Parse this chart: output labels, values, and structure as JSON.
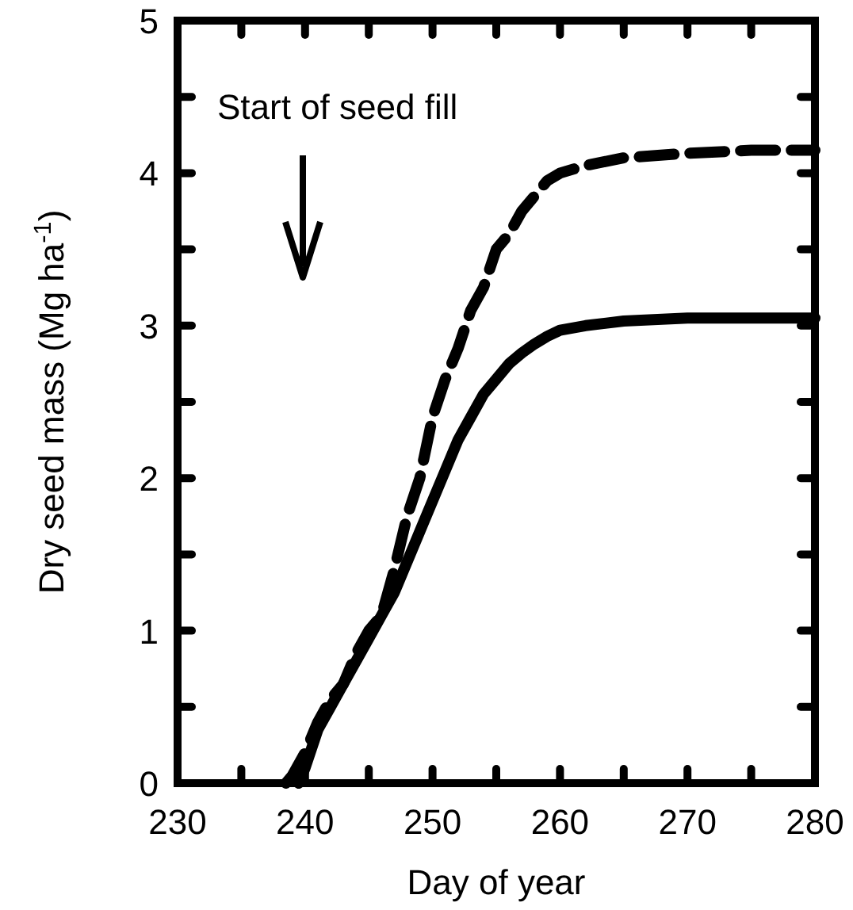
{
  "chart_data": {
    "type": "line",
    "xlabel": "Day of year",
    "ylabel": "Dry seed mass (Mg ha$^{-1}$)",
    "xlim": [
      230,
      280
    ],
    "ylim": [
      0,
      5
    ],
    "xticks": [
      230,
      {
        "value": 235,
        "label": null
      },
      240,
      {
        "value": 245,
        "label": null
      },
      250,
      {
        "value": 255,
        "label": null
      },
      260,
      {
        "value": 265,
        "label": null
      },
      270,
      {
        "value": 275,
        "label": null
      },
      280
    ],
    "yticks": [
      0,
      {
        "value": 0.5,
        "label": null
      },
      1,
      {
        "value": 1.5,
        "label": null
      },
      2,
      {
        "value": 2.5,
        "label": null
      },
      3,
      {
        "value": 3.5,
        "label": null
      },
      4,
      {
        "value": 4.5,
        "label": null
      },
      5
    ],
    "grid": false,
    "annotations": [
      "Start of seed fill"
    ],
    "series": [
      {
        "color": "#000000",
        "line_style": "dashed",
        "x": [
          238.5,
          239,
          240,
          241,
          242,
          243,
          244,
          245,
          246,
          247,
          248,
          249,
          250,
          251,
          252,
          253,
          254,
          255,
          256,
          257,
          258,
          259,
          260,
          262,
          265,
          270,
          275,
          280
        ],
        "values": [
          0,
          0.05,
          0.2,
          0.4,
          0.55,
          0.65,
          0.85,
          1.0,
          1.1,
          1.4,
          1.75,
          2.0,
          2.4,
          2.65,
          2.85,
          3.1,
          3.25,
          3.5,
          3.6,
          3.75,
          3.85,
          3.95,
          4.0,
          4.05,
          4.1,
          4.13,
          4.15,
          4.15
        ]
      },
      {
        "color": "#000000",
        "line_style": "solid",
        "x": [
          239.5,
          240,
          241,
          242,
          243,
          244,
          245,
          246,
          247,
          248,
          249,
          250,
          251,
          252,
          253,
          254,
          255,
          256,
          257,
          258,
          259,
          260,
          262,
          265,
          270,
          280
        ],
        "values": [
          0,
          0.1,
          0.35,
          0.5,
          0.65,
          0.8,
          0.95,
          1.1,
          1.25,
          1.45,
          1.65,
          1.85,
          2.05,
          2.25,
          2.4,
          2.55,
          2.65,
          2.75,
          2.82,
          2.88,
          2.93,
          2.97,
          3.0,
          3.03,
          3.05,
          3.05
        ]
      }
    ]
  }
}
